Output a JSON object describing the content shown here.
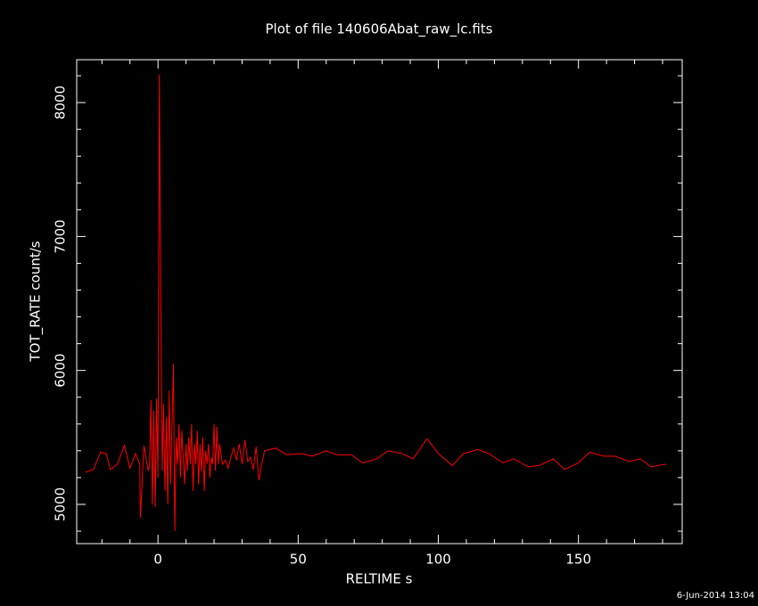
{
  "chart_data": {
    "type": "line",
    "title": "Plot of file 140606Abat_raw_lc.fits",
    "x_label": "RELTIME  s",
    "y_label": "TOT_RATE  count/s",
    "footer": "6-Jun-2014 13:04",
    "color": "#ff0000",
    "xlim": [
      -29,
      187
    ],
    "ylim": [
      4707,
      8320
    ],
    "xticks": [
      0,
      50,
      100,
      150
    ],
    "yticks": [
      5000,
      6000,
      7000,
      8000
    ],
    "xminor": [
      -20,
      -10,
      10,
      20,
      30,
      40,
      60,
      70,
      80,
      90,
      110,
      120,
      130,
      140,
      160,
      170,
      180
    ],
    "yminor": [
      4800,
      5200,
      5400,
      5600,
      5800,
      6200,
      6400,
      6600,
      6800,
      7200,
      7400,
      7600,
      7800,
      8200
    ],
    "x": [
      -26,
      -23,
      -20.5,
      -18.5,
      -17,
      -14.5,
      -12,
      -10,
      -8,
      -6.5,
      -6.3,
      -5,
      -3.5,
      -3,
      -2.5,
      -2,
      -1.5,
      -1,
      -0.5,
      0,
      0.5,
      1,
      1.5,
      2,
      2.5,
      3,
      3.5,
      4,
      4.5,
      5,
      5.5,
      6,
      6.5,
      7,
      7.5,
      8,
      8.5,
      9,
      9.5,
      10,
      10.5,
      11,
      11.5,
      12,
      12.5,
      13,
      13.5,
      14,
      14.5,
      15,
      15.5,
      16,
      16.5,
      17,
      17.5,
      18,
      18.5,
      19,
      19.5,
      20,
      20.5,
      21,
      21.5,
      22,
      23,
      24,
      25,
      26,
      27,
      28,
      29,
      30,
      31,
      32,
      33,
      34,
      35,
      36,
      37,
      38,
      42,
      46,
      51,
      55,
      60,
      64,
      69,
      73,
      78,
      82,
      87,
      91,
      96,
      100,
      105,
      109,
      114,
      118,
      123,
      127,
      132,
      136,
      141,
      145,
      150,
      154,
      159,
      163,
      168,
      172,
      176,
      181
    ],
    "values": [
      5240,
      5260,
      5390,
      5380,
      5260,
      5300,
      5440,
      5270,
      5380,
      5300,
      4900,
      5440,
      5250,
      5300,
      5780,
      5000,
      5700,
      4980,
      5790,
      5200,
      8210,
      6550,
      5250,
      5750,
      5100,
      5650,
      5000,
      5850,
      5150,
      5600,
      6050,
      4800,
      5500,
      5300,
      5600,
      5200,
      5550,
      5350,
      5150,
      5450,
      5250,
      5500,
      5300,
      5600,
      5100,
      5450,
      5300,
      5550,
      5150,
      5450,
      5250,
      5500,
      5100,
      5400,
      5300,
      5450,
      5200,
      5350,
      5300,
      5600,
      5250,
      5580,
      5300,
      5450,
      5300,
      5330,
      5270,
      5350,
      5420,
      5330,
      5450,
      5300,
      5480,
      5320,
      5350,
      5260,
      5430,
      5180,
      5300,
      5400,
      5420,
      5370,
      5380,
      5360,
      5400,
      5370,
      5370,
      5310,
      5340,
      5400,
      5380,
      5340,
      5490,
      5380,
      5290,
      5380,
      5410,
      5380,
      5310,
      5340,
      5280,
      5290,
      5340,
      5260,
      5310,
      5390,
      5360,
      5360,
      5320,
      5340,
      5280,
      5300
    ]
  }
}
